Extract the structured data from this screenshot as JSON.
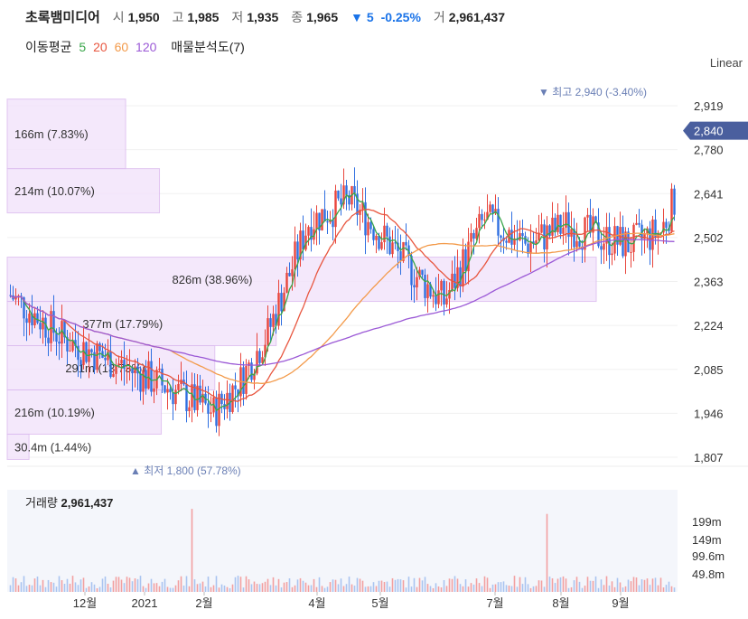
{
  "header": {
    "name": "초록뱀미디어",
    "open_label": "시",
    "open": "1,950",
    "high_label": "고",
    "high": "1,985",
    "low_label": "저",
    "low": "1,935",
    "close_label": "종",
    "close": "1,965",
    "change_arrow": "▼",
    "change": "5",
    "change_pct": "-0.25%",
    "volume_label": "거",
    "volume": "2,961,437"
  },
  "indicators": {
    "ma_label": "이동평균",
    "ma_periods": [
      "5",
      "20",
      "60",
      "120"
    ],
    "ma_colors": [
      "#3aa64a",
      "#e8563f",
      "#f39a4a",
      "#9b59d6"
    ],
    "vp_label": "매물분석도(7)"
  },
  "scale_label": "Linear",
  "colors": {
    "up": "#e8453c",
    "down": "#2f6fe0",
    "vp_fill": "#f3e4fb",
    "vp_stroke": "#dcbcef",
    "price_tag": "#4a5f9e"
  },
  "chart_data": {
    "type": "candlestick",
    "y_ticks": [
      "2,919",
      "2,780",
      "2,641",
      "2,502",
      "2,363",
      "2,224",
      "2,085",
      "1,946",
      "1,807"
    ],
    "x_ticks": [
      "12월",
      "2021",
      "2월",
      "4월",
      "5월",
      "7월",
      "8월",
      "9월"
    ],
    "current_price": "2,840",
    "high_annotation": {
      "arrow": "▼",
      "label": "최고",
      "value": "2,940 (-3.40%)"
    },
    "low_annotation": {
      "arrow": "▲",
      "label": "최저",
      "value": "1,800 (57.78%)"
    },
    "volume_profile": [
      {
        "label": "30.4m (1.44%)",
        "low": 1800,
        "high": 1880
      },
      {
        "label": "216m (10.19%)",
        "low": 1880,
        "high": 2020
      },
      {
        "label": "291m (13.73%)",
        "low": 2020,
        "high": 2160
      },
      {
        "label": "377m (17.79%)",
        "low": 2160,
        "high": 2300
      },
      {
        "label": "826m (38.96%)",
        "low": 2300,
        "high": 2440
      },
      {
        "label": "214m (10.07%)",
        "low": 2580,
        "high": 2720
      },
      {
        "label": "166m (7.83%)",
        "low": 2720,
        "high": 2940
      }
    ],
    "volume_title": "거래량",
    "volume_value": "2,961,437",
    "volume_ticks": [
      "199m",
      "149m",
      "99.6m",
      "49.8m"
    ]
  }
}
